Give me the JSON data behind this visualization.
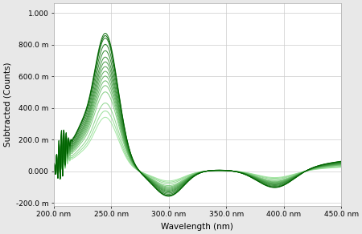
{
  "title": "",
  "xlabel": "Wavelength (nm)",
  "ylabel": "Subtracted (Counts)",
  "xlim": [
    200,
    450
  ],
  "ylim": [
    -0.22,
    1.06
  ],
  "yticks": [
    -0.2,
    0.0,
    0.2,
    0.4,
    0.6,
    0.8,
    1.0
  ],
  "ytick_labels": [
    "-200.0 m",
    "0.000",
    "200.0 m",
    "400.0 m",
    "600.0 m",
    "800.0 m",
    "1.000"
  ],
  "xticks": [
    200,
    250,
    300,
    350,
    400,
    450
  ],
  "xtick_labels": [
    "200.0 nm",
    "250.0 nm",
    "300.0 nm",
    "350.0 nm",
    "400.0 nm",
    "450.0 nm"
  ],
  "n_curves": 16,
  "color_dark": [
    0,
    100,
    0
  ],
  "color_light": [
    160,
    230,
    160
  ],
  "background_color": "#e8e8e8",
  "plot_bg_color": "#ffffff",
  "grid_color": "#cccccc",
  "scales": [
    0.34,
    0.38,
    0.43,
    0.5,
    0.54,
    0.57,
    0.6,
    0.63,
    0.66,
    0.69,
    0.72,
    0.76,
    0.8,
    0.84,
    0.87,
    0.855
  ]
}
